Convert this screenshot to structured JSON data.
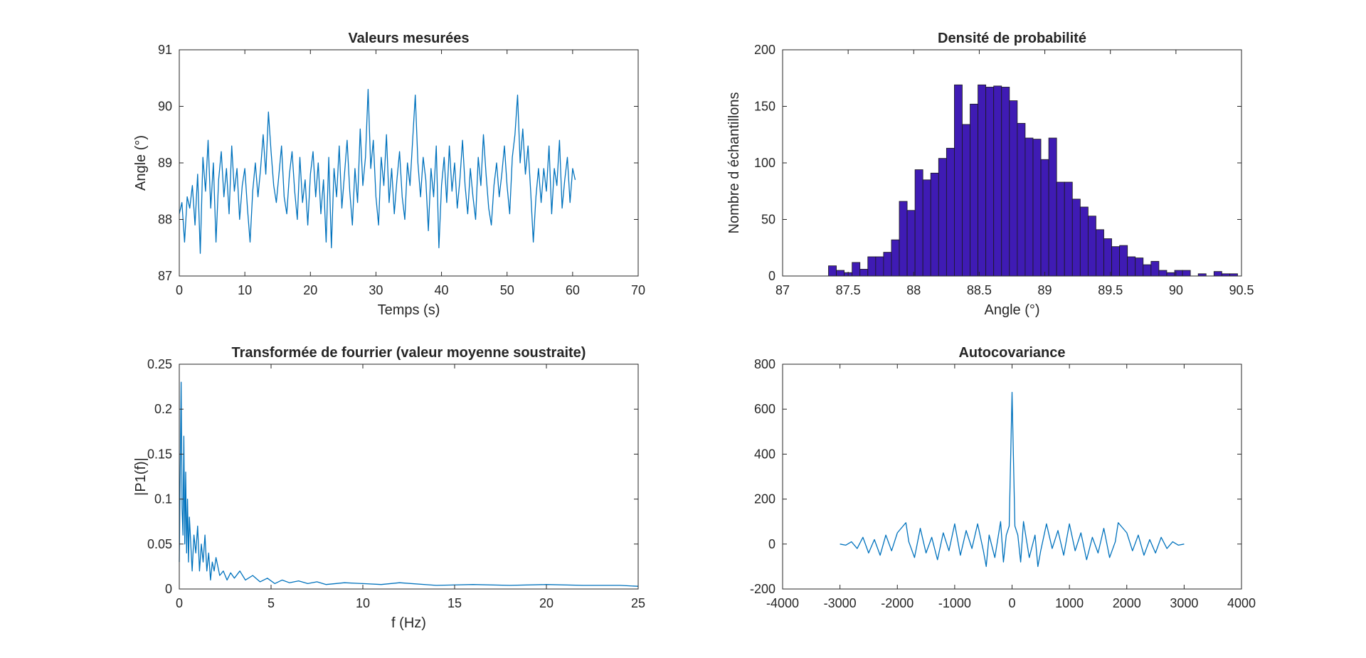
{
  "figure": {
    "background": "#ffffff",
    "line_color": "#0072BD",
    "bar_face": "#3F1BB4",
    "bar_edge": "#1a1a1a",
    "axis_color": "#262626"
  },
  "chart_data": [
    {
      "type": "line",
      "title": "Valeurs mesurées",
      "xlabel": "Temps (s)",
      "ylabel": "Angle (°)",
      "xlim": [
        0,
        70
      ],
      "ylim": [
        87,
        91
      ],
      "xticks": [
        0,
        10,
        20,
        30,
        40,
        50,
        60,
        70
      ],
      "yticks": [
        87,
        88,
        89,
        90,
        91
      ],
      "grid": false,
      "series": [
        {
          "x": [
            0,
            0.4,
            0.8,
            1.2,
            1.6,
            2.0,
            2.4,
            2.8,
            3.2,
            3.6,
            4.0,
            4.4,
            4.8,
            5.2,
            5.6,
            6.0,
            6.4,
            6.8,
            7.2,
            7.6,
            8.0,
            8.4,
            8.8,
            9.2,
            9.6,
            10.0,
            10.4,
            10.8,
            11.2,
            11.6,
            12.0,
            12.4,
            12.8,
            13.2,
            13.6,
            14.0,
            14.4,
            14.8,
            15.2,
            15.6,
            16.0,
            16.4,
            16.8,
            17.2,
            17.6,
            18.0,
            18.4,
            18.8,
            19.2,
            19.6,
            20.0,
            20.4,
            20.8,
            21.2,
            21.6,
            22.0,
            22.4,
            22.8,
            23.2,
            23.6,
            24.0,
            24.4,
            24.8,
            25.2,
            25.6,
            26.0,
            26.4,
            26.8,
            27.2,
            27.6,
            28.0,
            28.4,
            28.8,
            29.2,
            29.6,
            30.0,
            30.4,
            30.8,
            31.2,
            31.6,
            32.0,
            32.4,
            32.8,
            33.2,
            33.6,
            34.0,
            34.4,
            34.8,
            35.2,
            35.6,
            36.0,
            36.4,
            36.8,
            37.2,
            37.6,
            38.0,
            38.4,
            38.8,
            39.2,
            39.6,
            40.0,
            40.4,
            40.8,
            41.2,
            41.6,
            42.0,
            42.4,
            42.8,
            43.2,
            43.6,
            44.0,
            44.4,
            44.8,
            45.2,
            45.6,
            46.0,
            46.4,
            46.8,
            47.2,
            47.6,
            48.0,
            48.4,
            48.8,
            49.2,
            49.6,
            50.0,
            50.4,
            50.8,
            51.2,
            51.6,
            52.0,
            52.4,
            52.8,
            53.2,
            53.6,
            54.0,
            54.4,
            54.8,
            55.2,
            55.6,
            56.0,
            56.4,
            56.8,
            57.2,
            57.6,
            58.0,
            58.4,
            58.8,
            59.2,
            59.6,
            60.0,
            60.4
          ],
          "y": [
            88.1,
            88.3,
            87.6,
            88.4,
            88.2,
            88.6,
            87.9,
            88.8,
            87.4,
            89.1,
            88.5,
            89.4,
            88.2,
            89.0,
            87.6,
            88.7,
            89.2,
            88.4,
            88.9,
            88.1,
            89.3,
            88.5,
            88.9,
            88.0,
            88.6,
            88.9,
            88.2,
            87.6,
            88.5,
            89.0,
            88.4,
            88.9,
            89.5,
            88.8,
            89.9,
            89.2,
            88.6,
            88.3,
            88.8,
            89.3,
            88.4,
            88.1,
            88.8,
            89.2,
            88.5,
            88.0,
            89.1,
            88.3,
            88.7,
            87.9,
            88.8,
            89.2,
            88.4,
            89.0,
            88.1,
            88.7,
            87.6,
            89.1,
            87.5,
            88.9,
            88.4,
            89.3,
            88.2,
            88.8,
            89.4,
            88.5,
            87.9,
            88.9,
            88.3,
            89.6,
            88.6,
            89.1,
            90.3,
            88.9,
            89.4,
            88.4,
            87.9,
            89.1,
            88.6,
            89.5,
            88.3,
            88.9,
            88.1,
            88.7,
            89.2,
            88.4,
            88.0,
            89.0,
            88.6,
            89.4,
            90.2,
            89.0,
            88.4,
            89.1,
            88.7,
            87.8,
            88.9,
            88.4,
            89.3,
            87.5,
            88.6,
            89.1,
            88.3,
            89.3,
            88.5,
            89.0,
            88.2,
            88.7,
            89.4,
            88.6,
            88.1,
            88.9,
            88.4,
            88.0,
            89.1,
            88.6,
            89.5,
            88.8,
            88.2,
            87.9,
            88.6,
            89.0,
            88.4,
            88.8,
            89.3,
            88.6,
            88.1,
            89.1,
            89.5,
            90.2,
            89.0,
            89.6,
            88.8,
            89.3,
            88.5,
            87.6,
            88.4,
            88.9,
            88.3,
            88.9,
            88.5,
            89.3,
            88.1,
            88.9,
            88.6,
            89.4,
            88.2,
            88.7,
            89.1,
            88.3,
            88.9,
            88.7
          ]
        }
      ]
    },
    {
      "type": "bar",
      "title": "Densité de probabilité",
      "xlabel": "Angle (°)",
      "ylabel": "Nombre d échantillons",
      "xlim": [
        87,
        90.5
      ],
      "ylim": [
        0,
        200
      ],
      "xticks": [
        87,
        87.5,
        88,
        88.5,
        89,
        89.5,
        90,
        90.5
      ],
      "yticks": [
        0,
        50,
        100,
        150,
        200
      ],
      "grid": false,
      "bin_start": 87.35,
      "bin_width": 0.06,
      "values": [
        9,
        5,
        3,
        12,
        6,
        17,
        17,
        21,
        32,
        66,
        58,
        94,
        85,
        91,
        104,
        113,
        169,
        134,
        152,
        169,
        167,
        168,
        167,
        155,
        135,
        122,
        121,
        103,
        122,
        83,
        83,
        68,
        61,
        53,
        41,
        33,
        26,
        27,
        17,
        16,
        10,
        13,
        5,
        3,
        5,
        5,
        0,
        2,
        0,
        4,
        2,
        2
      ]
    },
    {
      "type": "line",
      "title": "Transformée de fourrier (valeur moyenne soustraite)",
      "xlabel": "f (Hz)",
      "ylabel": "|P1(f)|",
      "xlim": [
        0,
        25
      ],
      "ylim": [
        0,
        0.25
      ],
      "xticks": [
        0,
        5,
        10,
        15,
        20,
        25
      ],
      "yticks": [
        0,
        0.05,
        0.1,
        0.15,
        0.2,
        0.25
      ],
      "grid": false,
      "series": [
        {
          "x": [
            0,
            0.05,
            0.1,
            0.15,
            0.2,
            0.25,
            0.3,
            0.35,
            0.4,
            0.45,
            0.5,
            0.55,
            0.6,
            0.7,
            0.8,
            0.9,
            1.0,
            1.1,
            1.2,
            1.3,
            1.4,
            1.5,
            1.6,
            1.7,
            1.8,
            1.9,
            2.0,
            2.2,
            2.4,
            2.6,
            2.8,
            3.0,
            3.3,
            3.6,
            4.0,
            4.4,
            4.8,
            5.2,
            5.6,
            6.0,
            6.5,
            7.0,
            7.5,
            8.0,
            9.0,
            10.0,
            11.0,
            12.0,
            14.0,
            16.0,
            18.0,
            20.0,
            22.0,
            24.0,
            25.0
          ],
          "y": [
            0.03,
            0.13,
            0.23,
            0.09,
            0.06,
            0.17,
            0.05,
            0.13,
            0.04,
            0.1,
            0.03,
            0.08,
            0.06,
            0.02,
            0.06,
            0.04,
            0.07,
            0.02,
            0.05,
            0.03,
            0.06,
            0.02,
            0.04,
            0.01,
            0.03,
            0.02,
            0.035,
            0.015,
            0.02,
            0.01,
            0.018,
            0.012,
            0.02,
            0.01,
            0.015,
            0.008,
            0.012,
            0.006,
            0.01,
            0.007,
            0.009,
            0.006,
            0.008,
            0.005,
            0.007,
            0.006,
            0.005,
            0.007,
            0.004,
            0.005,
            0.004,
            0.005,
            0.004,
            0.004,
            0.003
          ]
        }
      ]
    },
    {
      "type": "line",
      "title": "Autocovariance",
      "xlabel": "",
      "ylabel": "",
      "xlim": [
        -4000,
        4000
      ],
      "ylim": [
        -200,
        800
      ],
      "xticks": [
        -4000,
        -3000,
        -2000,
        -1000,
        0,
        1000,
        2000,
        3000,
        4000
      ],
      "yticks": [
        -200,
        0,
        200,
        400,
        600,
        800
      ],
      "grid": false,
      "series": [
        {
          "x": [
            -3000,
            -2900,
            -2800,
            -2700,
            -2600,
            -2500,
            -2400,
            -2300,
            -2200,
            -2100,
            -2000,
            -1900,
            -1850,
            -1800,
            -1700,
            -1600,
            -1500,
            -1400,
            -1300,
            -1200,
            -1100,
            -1000,
            -900,
            -800,
            -700,
            -600,
            -500,
            -450,
            -400,
            -300,
            -200,
            -150,
            -100,
            -50,
            0,
            50,
            100,
            150,
            200,
            300,
            400,
            450,
            500,
            600,
            700,
            800,
            900,
            1000,
            1100,
            1200,
            1300,
            1400,
            1500,
            1600,
            1700,
            1800,
            1850,
            1900,
            2000,
            2100,
            2200,
            2300,
            2400,
            2500,
            2600,
            2700,
            2800,
            2900,
            3000
          ],
          "y": [
            0,
            -5,
            10,
            -20,
            30,
            -40,
            20,
            -50,
            40,
            -30,
            50,
            80,
            95,
            10,
            -60,
            70,
            -40,
            30,
            -70,
            50,
            -30,
            90,
            -50,
            60,
            -20,
            90,
            -30,
            -100,
            40,
            -60,
            100,
            -80,
            40,
            80,
            675,
            80,
            40,
            -80,
            100,
            -60,
            40,
            -100,
            -30,
            90,
            -20,
            60,
            -50,
            90,
            -30,
            50,
            -70,
            30,
            -40,
            70,
            -60,
            10,
            95,
            80,
            50,
            -30,
            40,
            -50,
            20,
            -40,
            30,
            -20,
            10,
            -5,
            0
          ]
        }
      ]
    }
  ]
}
